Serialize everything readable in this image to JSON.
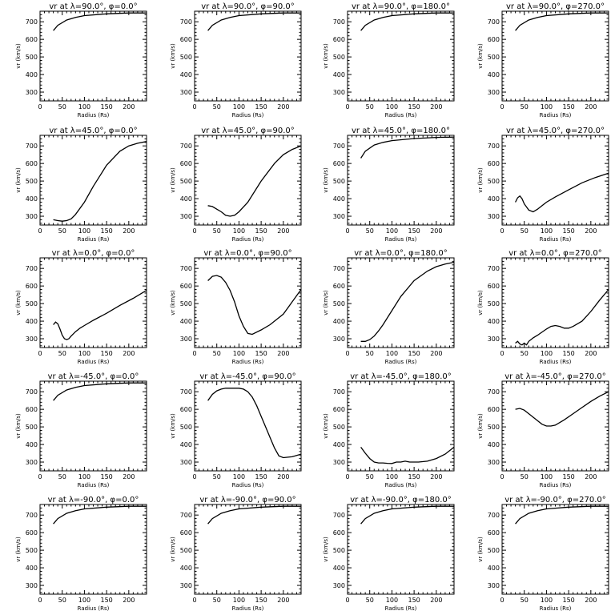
{
  "figure": {
    "rows": 5,
    "cols": 4
  },
  "chart_data": [
    {
      "type": "line",
      "title": "vr at λ=90.0°, φ=0.0°",
      "xlabel": "Radius (Rs)",
      "ylabel": "vr (km/s)",
      "xlim": [
        0,
        240
      ],
      "ylim": [
        250,
        760
      ],
      "xticks": [
        0,
        50,
        100,
        150,
        200
      ],
      "yticks": [
        300,
        400,
        500,
        600,
        700
      ],
      "series": [
        {
          "x": [
            30,
            40,
            60,
            80,
            100,
            150,
            200,
            240
          ],
          "y": [
            650,
            680,
            710,
            725,
            735,
            745,
            750,
            750
          ]
        }
      ]
    },
    {
      "type": "line",
      "title": "vr at λ=90.0°, φ=90.0°",
      "xlabel": "Radius (Rs)",
      "ylabel": "vr (km/s)",
      "xlim": [
        0,
        240
      ],
      "ylim": [
        250,
        760
      ],
      "xticks": [
        0,
        50,
        100,
        150,
        200
      ],
      "yticks": [
        300,
        400,
        500,
        600,
        700
      ],
      "series": [
        {
          "x": [
            30,
            40,
            60,
            80,
            100,
            150,
            200,
            240
          ],
          "y": [
            650,
            680,
            710,
            725,
            735,
            745,
            750,
            750
          ]
        }
      ]
    },
    {
      "type": "line",
      "title": "vr at λ=90.0°, φ=180.0°",
      "xlabel": "Radius (Rs)",
      "ylabel": "vr (km/s)",
      "xlim": [
        0,
        240
      ],
      "ylim": [
        250,
        760
      ],
      "xticks": [
        0,
        50,
        100,
        150,
        200
      ],
      "yticks": [
        300,
        400,
        500,
        600,
        700
      ],
      "series": [
        {
          "x": [
            30,
            40,
            60,
            80,
            100,
            150,
            200,
            240
          ],
          "y": [
            650,
            680,
            710,
            725,
            735,
            745,
            750,
            750
          ]
        }
      ]
    },
    {
      "type": "line",
      "title": "vr at λ=90.0°, φ=270.0°",
      "xlabel": "Radius (Rs)",
      "ylabel": "vr (km/s)",
      "xlim": [
        0,
        240
      ],
      "ylim": [
        250,
        760
      ],
      "xticks": [
        0,
        50,
        100,
        150,
        200
      ],
      "yticks": [
        300,
        400,
        500,
        600,
        700
      ],
      "series": [
        {
          "x": [
            30,
            40,
            60,
            80,
            100,
            150,
            200,
            240
          ],
          "y": [
            650,
            680,
            710,
            725,
            735,
            745,
            750,
            750
          ]
        }
      ]
    },
    {
      "type": "line",
      "title": "vr at λ=45.0°, φ=0.0°",
      "xlabel": "Radius (Rs)",
      "ylabel": "vr (km/s)",
      "xlim": [
        0,
        240
      ],
      "ylim": [
        250,
        760
      ],
      "xticks": [
        0,
        50,
        100,
        150,
        200
      ],
      "yticks": [
        300,
        400,
        500,
        600,
        700
      ],
      "series": [
        {
          "x": [
            30,
            40,
            50,
            60,
            70,
            80,
            100,
            120,
            150,
            180,
            200,
            220,
            240
          ],
          "y": [
            280,
            275,
            272,
            275,
            285,
            310,
            380,
            470,
            590,
            670,
            700,
            715,
            725
          ]
        }
      ]
    },
    {
      "type": "line",
      "title": "vr at λ=45.0°, φ=90.0°",
      "xlabel": "Radius (Rs)",
      "ylabel": "vr (km/s)",
      "xlim": [
        0,
        240
      ],
      "ylim": [
        250,
        760
      ],
      "xticks": [
        0,
        50,
        100,
        150,
        200
      ],
      "yticks": [
        300,
        400,
        500,
        600,
        700
      ],
      "series": [
        {
          "x": [
            30,
            40,
            50,
            60,
            70,
            80,
            90,
            100,
            120,
            150,
            180,
            200,
            220,
            240
          ],
          "y": [
            360,
            355,
            340,
            325,
            305,
            300,
            305,
            325,
            380,
            500,
            600,
            650,
            680,
            700
          ]
        }
      ]
    },
    {
      "type": "line",
      "title": "vr at λ=45.0°, φ=180.0°",
      "xlabel": "Radius (Rs)",
      "ylabel": "vr (km/s)",
      "xlim": [
        0,
        240
      ],
      "ylim": [
        250,
        760
      ],
      "xticks": [
        0,
        50,
        100,
        150,
        200
      ],
      "yticks": [
        300,
        400,
        500,
        600,
        700
      ],
      "series": [
        {
          "x": [
            30,
            40,
            60,
            80,
            100,
            150,
            200,
            240
          ],
          "y": [
            630,
            670,
            705,
            720,
            730,
            742,
            748,
            750
          ]
        }
      ]
    },
    {
      "type": "line",
      "title": "vr at λ=45.0°, φ=270.0°",
      "xlabel": "Radius (Rs)",
      "ylabel": "vr (km/s)",
      "xlim": [
        0,
        240
      ],
      "ylim": [
        250,
        760
      ],
      "xticks": [
        0,
        50,
        100,
        150,
        200
      ],
      "yticks": [
        300,
        400,
        500,
        600,
        700
      ],
      "series": [
        {
          "x": [
            30,
            35,
            40,
            45,
            50,
            60,
            70,
            80,
            100,
            120,
            150,
            180,
            210,
            240
          ],
          "y": [
            380,
            405,
            415,
            400,
            370,
            335,
            325,
            340,
            380,
            410,
            450,
            490,
            520,
            545
          ]
        }
      ]
    },
    {
      "type": "line",
      "title": "vr at λ=0.0°, φ=0.0°",
      "xlabel": "Radius (Rs)",
      "ylabel": "vr (km/s)",
      "xlim": [
        0,
        240
      ],
      "ylim": [
        250,
        760
      ],
      "xticks": [
        0,
        50,
        100,
        150,
        200
      ],
      "yticks": [
        300,
        400,
        500,
        600,
        700
      ],
      "series": [
        {
          "x": [
            30,
            35,
            40,
            45,
            50,
            55,
            60,
            65,
            70,
            80,
            90,
            100,
            120,
            150,
            180,
            210,
            240
          ],
          "y": [
            380,
            395,
            385,
            355,
            320,
            300,
            295,
            300,
            315,
            340,
            360,
            375,
            405,
            445,
            490,
            530,
            575
          ]
        }
      ]
    },
    {
      "type": "line",
      "title": "vr at λ=0.0°, φ=90.0°",
      "xlabel": "Radius (Rs)",
      "ylabel": "vr (km/s)",
      "xlim": [
        0,
        240
      ],
      "ylim": [
        250,
        760
      ],
      "xticks": [
        0,
        50,
        100,
        150,
        200
      ],
      "yticks": [
        300,
        400,
        500,
        600,
        700
      ],
      "series": [
        {
          "x": [
            30,
            40,
            50,
            60,
            70,
            80,
            90,
            100,
            110,
            120,
            130,
            150,
            170,
            200,
            220,
            240
          ],
          "y": [
            630,
            655,
            660,
            650,
            620,
            575,
            510,
            430,
            370,
            330,
            325,
            350,
            380,
            440,
            510,
            580
          ]
        }
      ]
    },
    {
      "type": "line",
      "title": "vr at λ=0.0°, φ=180.0°",
      "xlabel": "Radius (Rs)",
      "ylabel": "vr (km/s)",
      "xlim": [
        0,
        240
      ],
      "ylim": [
        250,
        760
      ],
      "xticks": [
        0,
        50,
        100,
        150,
        200
      ],
      "yticks": [
        300,
        400,
        500,
        600,
        700
      ],
      "series": [
        {
          "x": [
            30,
            40,
            50,
            60,
            70,
            80,
            100,
            120,
            150,
            180,
            200,
            220,
            240
          ],
          "y": [
            285,
            285,
            295,
            315,
            345,
            380,
            460,
            540,
            630,
            685,
            710,
            725,
            735
          ]
        }
      ]
    },
    {
      "type": "line",
      "title": "vr at λ=0.0°, φ=270.0°",
      "xlabel": "Radius (Rs)",
      "ylabel": "vr (km/s)",
      "xlim": [
        0,
        240
      ],
      "ylim": [
        250,
        760
      ],
      "xticks": [
        0,
        50,
        100,
        150,
        200
      ],
      "yticks": [
        300,
        400,
        500,
        600,
        700
      ],
      "series": [
        {
          "x": [
            30,
            35,
            40,
            45,
            50,
            55,
            60,
            70,
            80,
            100,
            110,
            120,
            130,
            140,
            150,
            160,
            180,
            200,
            220,
            240
          ],
          "y": [
            275,
            285,
            270,
            265,
            275,
            265,
            285,
            305,
            320,
            355,
            370,
            375,
            370,
            360,
            360,
            370,
            400,
            455,
            520,
            580
          ]
        }
      ]
    },
    {
      "type": "line",
      "title": "vr at λ=-45.0°, φ=0.0°",
      "xlabel": "Radius (Rs)",
      "ylabel": "vr (km/s)",
      "xlim": [
        0,
        240
      ],
      "ylim": [
        250,
        760
      ],
      "xticks": [
        0,
        50,
        100,
        150,
        200
      ],
      "yticks": [
        300,
        400,
        500,
        600,
        700
      ],
      "series": [
        {
          "x": [
            30,
            40,
            60,
            80,
            100,
            150,
            200,
            240
          ],
          "y": [
            650,
            680,
            710,
            725,
            735,
            745,
            750,
            750
          ]
        }
      ]
    },
    {
      "type": "line",
      "title": "vr at λ=-45.0°, φ=90.0°",
      "xlabel": "Radius (Rs)",
      "ylabel": "vr (km/s)",
      "xlim": [
        0,
        240
      ],
      "ylim": [
        250,
        760
      ],
      "xticks": [
        0,
        50,
        100,
        150,
        200
      ],
      "yticks": [
        300,
        400,
        500,
        600,
        700
      ],
      "series": [
        {
          "x": [
            30,
            40,
            50,
            60,
            70,
            80,
            100,
            110,
            120,
            130,
            140,
            150,
            160,
            170,
            180,
            190,
            200,
            220,
            240
          ],
          "y": [
            650,
            685,
            705,
            715,
            720,
            720,
            720,
            715,
            700,
            670,
            620,
            560,
            500,
            440,
            380,
            335,
            325,
            330,
            345
          ]
        }
      ]
    },
    {
      "type": "line",
      "title": "vr at λ=-45.0°, φ=180.0°",
      "xlabel": "Radius (Rs)",
      "ylabel": "vr (km/s)",
      "xlim": [
        0,
        240
      ],
      "ylim": [
        250,
        760
      ],
      "xticks": [
        0,
        50,
        100,
        150,
        200
      ],
      "yticks": [
        300,
        400,
        500,
        600,
        700
      ],
      "series": [
        {
          "x": [
            30,
            40,
            50,
            60,
            70,
            80,
            90,
            100,
            110,
            120,
            130,
            140,
            160,
            180,
            200,
            220,
            240
          ],
          "y": [
            385,
            350,
            320,
            300,
            295,
            295,
            293,
            292,
            300,
            300,
            305,
            300,
            300,
            305,
            320,
            345,
            385
          ]
        }
      ]
    },
    {
      "type": "line",
      "title": "vr at λ=-45.0°, φ=270.0°",
      "xlabel": "Radius (Rs)",
      "ylabel": "vr (km/s)",
      "xlim": [
        0,
        240
      ],
      "ylim": [
        250,
        760
      ],
      "xticks": [
        0,
        50,
        100,
        150,
        200
      ],
      "yticks": [
        300,
        400,
        500,
        600,
        700
      ],
      "series": [
        {
          "x": [
            30,
            40,
            50,
            60,
            70,
            80,
            90,
            100,
            110,
            120,
            140,
            160,
            180,
            200,
            220,
            240
          ],
          "y": [
            600,
            605,
            595,
            575,
            555,
            535,
            515,
            505,
            505,
            510,
            540,
            575,
            610,
            645,
            675,
            700
          ]
        }
      ]
    },
    {
      "type": "line",
      "title": "vr at λ=-90.0°, φ=0.0°",
      "xlabel": "Radius (Rs)",
      "ylabel": "vr (km/s)",
      "xlim": [
        0,
        240
      ],
      "ylim": [
        250,
        760
      ],
      "xticks": [
        0,
        50,
        100,
        150,
        200
      ],
      "yticks": [
        300,
        400,
        500,
        600,
        700
      ],
      "series": [
        {
          "x": [
            30,
            40,
            60,
            80,
            100,
            150,
            200,
            240
          ],
          "y": [
            650,
            680,
            710,
            725,
            735,
            745,
            750,
            750
          ]
        }
      ]
    },
    {
      "type": "line",
      "title": "vr at λ=-90.0°, φ=90.0°",
      "xlabel": "Radius (Rs)",
      "ylabel": "vr (km/s)",
      "xlim": [
        0,
        240
      ],
      "ylim": [
        250,
        760
      ],
      "xticks": [
        0,
        50,
        100,
        150,
        200
      ],
      "yticks": [
        300,
        400,
        500,
        600,
        700
      ],
      "series": [
        {
          "x": [
            30,
            40,
            60,
            80,
            100,
            150,
            200,
            240
          ],
          "y": [
            650,
            680,
            710,
            725,
            735,
            745,
            750,
            750
          ]
        }
      ]
    },
    {
      "type": "line",
      "title": "vr at λ=-90.0°, φ=180.0°",
      "xlabel": "Radius (Rs)",
      "ylabel": "vr (km/s)",
      "xlim": [
        0,
        240
      ],
      "ylim": [
        250,
        760
      ],
      "xticks": [
        0,
        50,
        100,
        150,
        200
      ],
      "yticks": [
        300,
        400,
        500,
        600,
        700
      ],
      "series": [
        {
          "x": [
            30,
            40,
            60,
            80,
            100,
            150,
            200,
            240
          ],
          "y": [
            650,
            680,
            710,
            725,
            735,
            745,
            750,
            750
          ]
        }
      ]
    },
    {
      "type": "line",
      "title": "vr at λ=-90.0°, φ=270.0°",
      "xlabel": "Radius (Rs)",
      "ylabel": "vr (km/s)",
      "xlim": [
        0,
        240
      ],
      "ylim": [
        250,
        760
      ],
      "xticks": [
        0,
        50,
        100,
        150,
        200
      ],
      "yticks": [
        300,
        400,
        500,
        600,
        700
      ],
      "series": [
        {
          "x": [
            30,
            40,
            60,
            80,
            100,
            150,
            200,
            240
          ],
          "y": [
            650,
            680,
            710,
            725,
            735,
            745,
            750,
            750
          ]
        }
      ]
    }
  ]
}
